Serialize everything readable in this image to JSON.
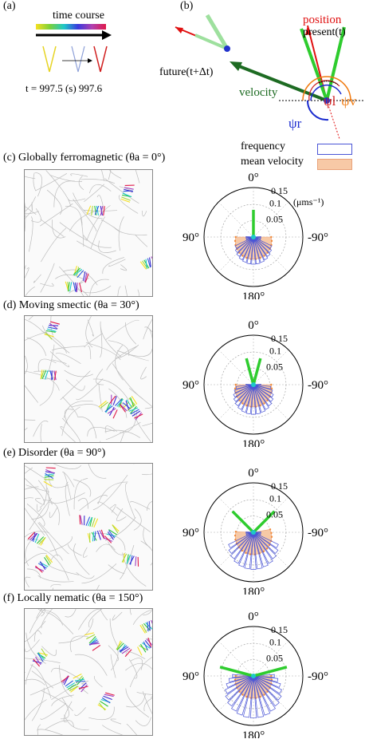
{
  "panel_a": {
    "label": "(a)",
    "time_course": "time course",
    "time_text": "t = 997.5 (s) 997.6",
    "colors": {
      "start": "#e6d320",
      "mid": "#6b7fc6",
      "end": "#d01c1c"
    }
  },
  "panel_b": {
    "label": "(b)",
    "position": "position",
    "present": "present(t)",
    "future": "future(t+Δt)",
    "velocity": "velocity",
    "psi_r": "ψr",
    "psi_l": "ψl",
    "psi_v": "ψv",
    "colors": {
      "position": "#e01010",
      "velocity": "#1d6b22",
      "present": "#2ecc2e",
      "psi_r": "#1a2bcf",
      "psi_l": "#d02020",
      "psi_v": "#f07a10"
    }
  },
  "legend": {
    "frequency": "frequency",
    "mean_velocity": "mean velocity",
    "frequency_color": "#4a55d6",
    "mean_velocity_color": "#f7c9a6"
  },
  "polar_common": {
    "top": "0°",
    "left": "90°",
    "right": "-90°",
    "bottom": "180°",
    "unit": "(μms⁻¹)",
    "ring_labels": [
      "0.15",
      "0.1",
      "0.05"
    ]
  },
  "panels": [
    {
      "label": "(c) Globally ferromagnetic (θa = 0°)",
      "theta_a": 0,
      "chart_data": {
        "type": "polar",
        "green_directions_deg": [
          0
        ],
        "green_lengths": [
          0.55
        ],
        "freq_spread": 60,
        "freq_max": 0.55,
        "mean_spread": 90
      }
    },
    {
      "label": "(d) Moving smectic (θa = 30°)",
      "theta_a": 30,
      "chart_data": {
        "type": "polar",
        "green_directions_deg": [
          -15,
          15
        ],
        "green_lengths": [
          0.55,
          0.55
        ],
        "freq_spread": 80,
        "freq_max": 0.6,
        "mean_spread": 90
      }
    },
    {
      "label": "(e) Disorder (θa = 90°)",
      "theta_a": 90,
      "chart_data": {
        "type": "polar",
        "green_directions_deg": [
          -45,
          45
        ],
        "green_lengths": [
          0.6,
          0.6
        ],
        "freq_spread": 60,
        "freq_max": 0.75,
        "mean_spread": 100
      }
    },
    {
      "label": "(f) Locally nematic (θa = 150°)",
      "theta_a": 150,
      "chart_data": {
        "type": "polar",
        "green_directions_deg": [
          -75,
          75
        ],
        "green_lengths": [
          0.7,
          0.7
        ],
        "freq_spread": 110,
        "freq_max": 0.85,
        "mean_spread": 90
      }
    }
  ]
}
